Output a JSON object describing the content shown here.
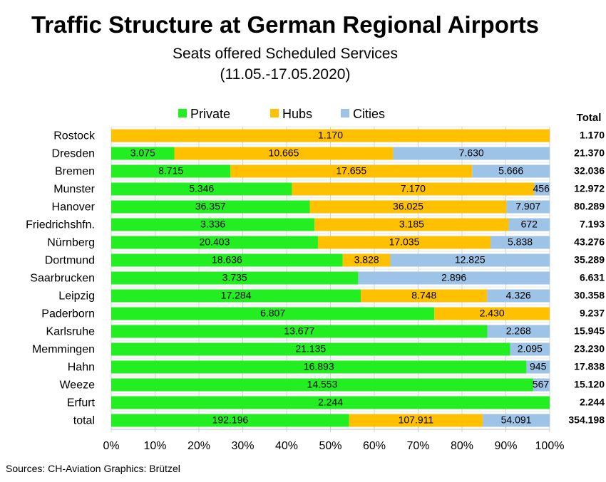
{
  "title": "Traffic Structure at German Regional Airports",
  "subtitle": "Seats offered Scheduled Services",
  "date_range": "(11.05.-17.05.2020)",
  "source": "Sources: CH-Aviation  Graphics: Brützel",
  "chart_data": {
    "type": "bar",
    "orientation": "horizontal",
    "stacked": "percent",
    "categories": [
      "Rostock",
      "Dresden",
      "Bremen",
      "Munster",
      "Hanover",
      "Friedrichshfn.",
      "Nürnberg",
      "Dortmund",
      "Saarbrucken",
      "Leipzig",
      "Paderborn",
      "Karlsruhe",
      "Memmingen",
      "Hahn",
      "Weeze",
      "Erfurt",
      "total"
    ],
    "series": [
      {
        "name": "Private",
        "color": "#22ee22",
        "values": [
          0,
          3075,
          8715,
          5346,
          36357,
          3336,
          20403,
          18636,
          3735,
          17284,
          6807,
          13677,
          21135,
          16893,
          14553,
          2244,
          192196
        ],
        "labels": [
          "",
          "3.075",
          "8.715",
          "5.346",
          "36.357",
          "3.336",
          "20.403",
          "18.636",
          "3.735",
          "17.284",
          "6.807",
          "13.677",
          "21.135",
          "16.893",
          "14.553",
          "2.244",
          "192.196"
        ]
      },
      {
        "name": "Hubs",
        "color": "#ffc000",
        "values": [
          1170,
          10665,
          17655,
          7170,
          36025,
          3185,
          17035,
          3828,
          0,
          8748,
          2430,
          0,
          0,
          0,
          0,
          0,
          107911
        ],
        "labels": [
          "1.170",
          "10.665",
          "17.655",
          "7.170",
          "36.025",
          "3.185",
          "17.035",
          "3.828",
          "",
          "8.748",
          "2.430",
          "",
          "",
          "",
          "",
          "",
          "107.911"
        ]
      },
      {
        "name": "Cities",
        "color": "#9dc3e6",
        "values": [
          0,
          7630,
          5666,
          456,
          7907,
          672,
          5838,
          12825,
          2896,
          4326,
          0,
          2268,
          2095,
          945,
          567,
          0,
          54091
        ],
        "labels": [
          "",
          "7.630",
          "5.666",
          "456",
          "7.907",
          "672",
          "5.838",
          "12.825",
          "2.896",
          "4.326",
          "",
          "2.268",
          "2.095",
          "945",
          "567",
          "",
          "54.091"
        ]
      }
    ],
    "totals_header": "Total",
    "totals": [
      "1.170",
      "21.370",
      "32.036",
      "12.972",
      "80.289",
      "7.193",
      "43.276",
      "35.289",
      "6.631",
      "30.358",
      "9.237",
      "15.945",
      "23.230",
      "17.838",
      "15.120",
      "2.244",
      "354.198"
    ],
    "x_ticks": [
      "0%",
      "10%",
      "20%",
      "30%",
      "40%",
      "50%",
      "60%",
      "70%",
      "80%",
      "90%",
      "100%"
    ],
    "xlim": [
      0,
      100
    ],
    "legend_position": "top",
    "grid": true
  }
}
